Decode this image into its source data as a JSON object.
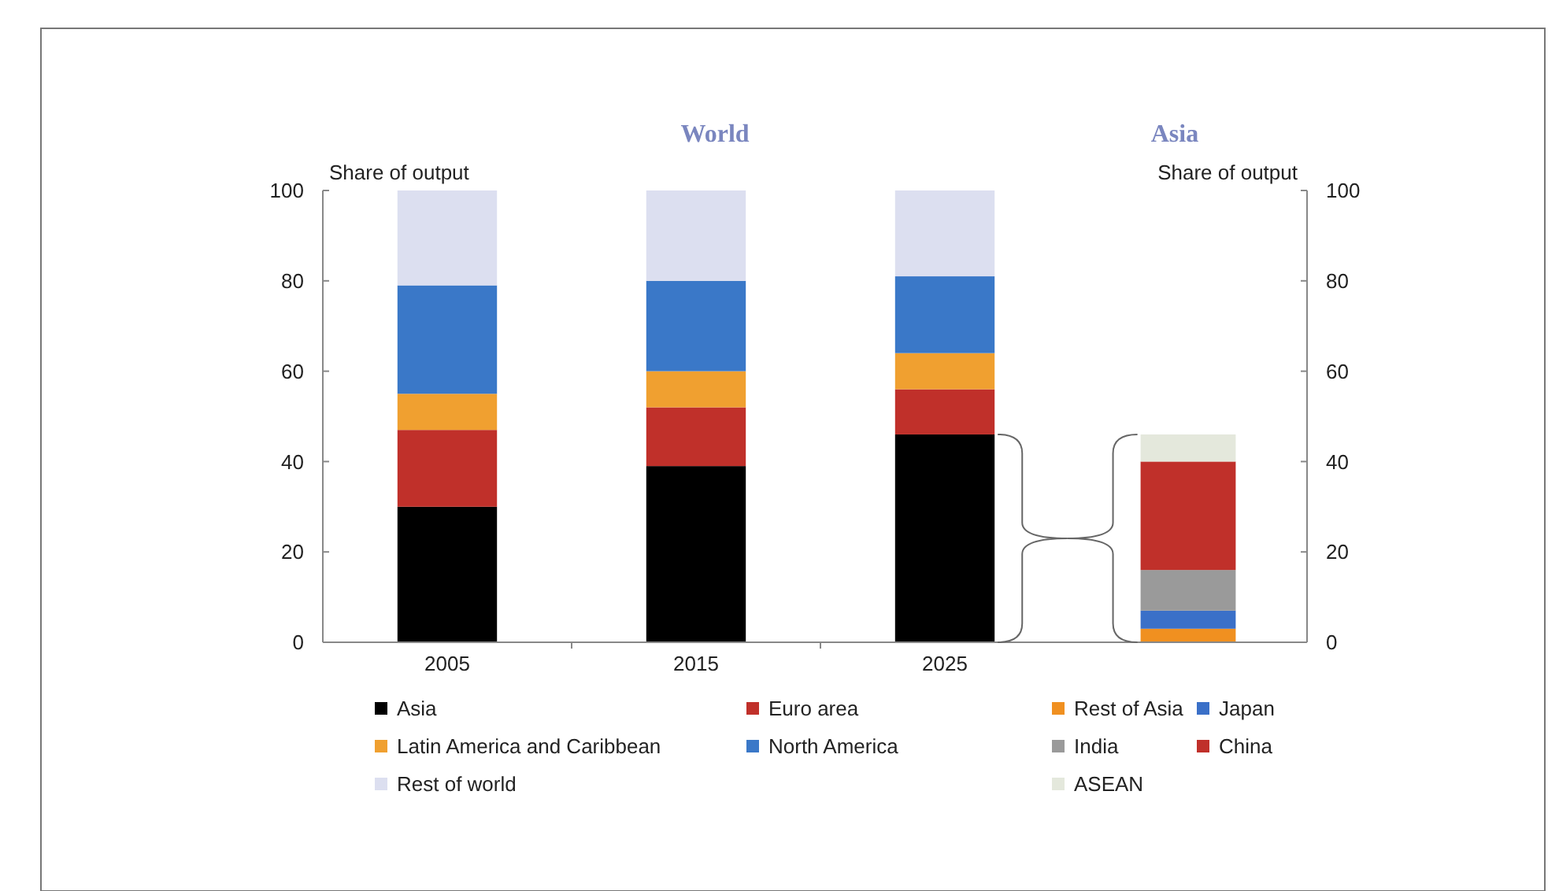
{
  "chart_data": [
    {
      "type": "bar",
      "title": "World",
      "ylabel": "Share of output",
      "stacked": true,
      "legend": "bottom",
      "categories": [
        "2005",
        "2015",
        "2025"
      ],
      "ylim": [
        0,
        100
      ],
      "yticks": [
        0,
        20,
        40,
        60,
        80,
        100
      ],
      "series": [
        {
          "name": "Asia",
          "color": "#000000",
          "values": [
            30,
            39,
            46
          ]
        },
        {
          "name": "Euro area",
          "color": "#c0302a",
          "values": [
            17,
            13,
            10
          ]
        },
        {
          "name": "Latin America and Caribbean",
          "color": "#f0a030",
          "values": [
            8,
            8,
            8
          ]
        },
        {
          "name": "North America",
          "color": "#3a78c8",
          "values": [
            24,
            20,
            17
          ]
        },
        {
          "name": "Rest of world",
          "color": "#dcdff0",
          "values": [
            21,
            20,
            19
          ]
        }
      ]
    },
    {
      "type": "bar",
      "title": "Asia",
      "ylabel": "Share of output",
      "stacked": true,
      "legend": "bottom",
      "categories": [
        null
      ],
      "ylim": [
        0,
        100
      ],
      "yticks": [
        0,
        20,
        40,
        60,
        80,
        100
      ],
      "series": [
        {
          "name": "Rest of Asia",
          "color": "#f09020",
          "values": [
            3
          ]
        },
        {
          "name": "Japan",
          "color": "#3a70c8",
          "values": [
            4
          ]
        },
        {
          "name": "India",
          "color": "#9a9a9a",
          "values": [
            9
          ]
        },
        {
          "name": "China",
          "color": "#c0302a",
          "values": [
            24
          ]
        },
        {
          "name": "ASEAN",
          "color": "#e4e8dc",
          "values": [
            6
          ]
        }
      ]
    }
  ]
}
